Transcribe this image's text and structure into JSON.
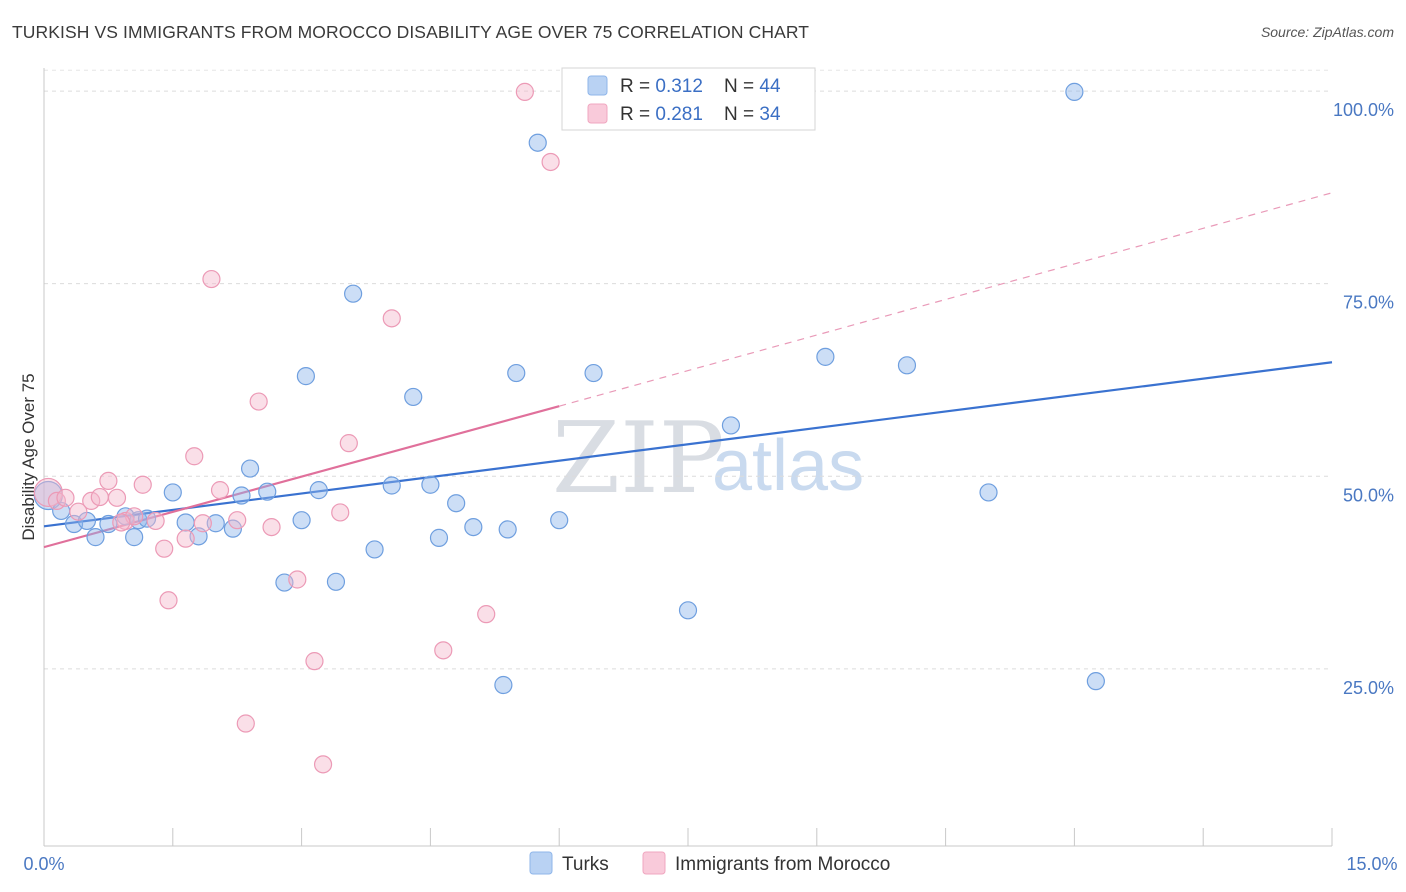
{
  "chart_data": {
    "type": "scatter",
    "title": "TURKISH VS IMMIGRANTS FROM MOROCCO DISABILITY AGE OVER 75 CORRELATION CHART",
    "source": "Source: ZipAtlas.com",
    "ylabel": "Disability Age Over 75",
    "xlabel": "",
    "xlim": [
      0,
      15
    ],
    "ylim": [
      2,
      103
    ],
    "x_tick_labels": [
      "0.0%",
      "15.0%"
    ],
    "y_ticks": [
      25,
      50,
      75,
      100
    ],
    "y_tick_labels": [
      "25.0%",
      "50.0%",
      "75.0%",
      "100.0%"
    ],
    "grid": true,
    "watermark": {
      "part1": "ZIP",
      "part2": "atlas"
    },
    "legend": {
      "entries": [
        {
          "r_label": "R = ",
          "r_value": "0.312",
          "n_label": "N = ",
          "n_value": "44"
        },
        {
          "r_label": "R = ",
          "r_value": "0.281",
          "n_label": "N = ",
          "n_value": "34"
        }
      ]
    },
    "series": [
      {
        "name": "Turks",
        "color": "#8fb6ea",
        "edge": "#6f9fdf",
        "line_color": "#3a72d0",
        "trend": {
          "x0": 0,
          "y0": 43.5,
          "x1": 15,
          "y1": 64.8
        },
        "points": [
          [
            0.05,
            47.5
          ],
          [
            0.2,
            45.5
          ],
          [
            0.35,
            43.8
          ],
          [
            0.5,
            44.2
          ],
          [
            0.6,
            42.1
          ],
          [
            0.75,
            43.8
          ],
          [
            0.95,
            44.8
          ],
          [
            1.05,
            42.1
          ],
          [
            1.1,
            44.3
          ],
          [
            1.2,
            44.5
          ],
          [
            1.5,
            47.9
          ],
          [
            1.65,
            44.0
          ],
          [
            1.8,
            42.2
          ],
          [
            2.0,
            43.9
          ],
          [
            2.2,
            43.2
          ],
          [
            2.3,
            47.5
          ],
          [
            2.4,
            51.0
          ],
          [
            2.6,
            48.0
          ],
          [
            2.8,
            36.2
          ],
          [
            3.0,
            44.3
          ],
          [
            3.05,
            63.0
          ],
          [
            3.2,
            48.2
          ],
          [
            3.4,
            36.3
          ],
          [
            3.6,
            73.7
          ],
          [
            3.85,
            40.5
          ],
          [
            4.05,
            48.8
          ],
          [
            4.3,
            60.3
          ],
          [
            4.5,
            48.9
          ],
          [
            4.6,
            42.0
          ],
          [
            4.8,
            46.5
          ],
          [
            5.0,
            43.4
          ],
          [
            5.35,
            22.9
          ],
          [
            5.4,
            43.1
          ],
          [
            5.5,
            63.4
          ],
          [
            5.75,
            93.3
          ],
          [
            6.0,
            44.3
          ],
          [
            6.4,
            63.4
          ],
          [
            7.5,
            32.6
          ],
          [
            8.0,
            56.6
          ],
          [
            9.1,
            65.5
          ],
          [
            10.05,
            64.4
          ],
          [
            11.0,
            47.9
          ],
          [
            12.0,
            99.9
          ],
          [
            12.25,
            23.4
          ]
        ]
      },
      {
        "name": "Immigrants from Morocco",
        "color": "#f5b8cc",
        "edge": "#ec9ab6",
        "line_color": "#e0709b",
        "trend": {
          "x0": 0,
          "y0": 40.8,
          "x1": 6.0,
          "y1": 59.1
        },
        "trend_ext": {
          "x0": 6.0,
          "y0": 59.1,
          "x1": 15,
          "y1": 86.8
        },
        "points": [
          [
            0.05,
            47.9
          ],
          [
            0.15,
            46.8
          ],
          [
            0.25,
            47.2
          ],
          [
            0.4,
            45.4
          ],
          [
            0.55,
            46.8
          ],
          [
            0.65,
            47.3
          ],
          [
            0.75,
            49.4
          ],
          [
            0.85,
            47.2
          ],
          [
            0.95,
            44.2
          ],
          [
            1.05,
            44.8
          ],
          [
            1.15,
            48.9
          ],
          [
            1.3,
            44.2
          ],
          [
            1.4,
            40.6
          ],
          [
            1.45,
            33.9
          ],
          [
            1.65,
            41.9
          ],
          [
            1.75,
            52.6
          ],
          [
            1.85,
            43.9
          ],
          [
            1.95,
            75.6
          ],
          [
            2.05,
            48.2
          ],
          [
            2.25,
            44.3
          ],
          [
            2.35,
            17.9
          ],
          [
            2.5,
            59.7
          ],
          [
            2.65,
            43.4
          ],
          [
            2.95,
            36.6
          ],
          [
            3.15,
            26.0
          ],
          [
            3.25,
            12.6
          ],
          [
            3.45,
            45.3
          ],
          [
            3.55,
            54.3
          ],
          [
            4.05,
            70.5
          ],
          [
            4.65,
            27.4
          ],
          [
            5.15,
            32.1
          ],
          [
            5.6,
            99.9
          ],
          [
            5.9,
            90.8
          ],
          [
            0.9,
            44.0
          ]
        ]
      }
    ]
  }
}
